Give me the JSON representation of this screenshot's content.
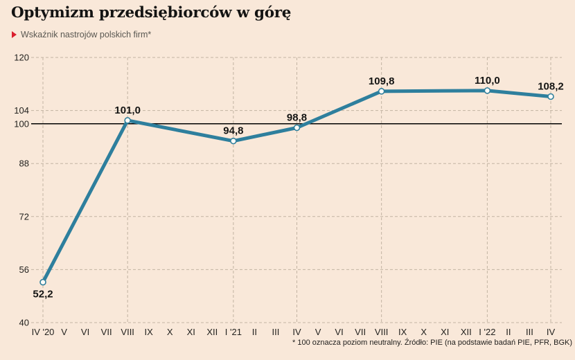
{
  "page": {
    "title": "Optymizm przedsiębiorców w górę",
    "subtitle": "Wskaźnik nastrojów polskich firm*",
    "footnote": "* 100 oznacza poziom neutralny. Źródło: PIE (na podstawie badań PIE, PFR, BGK)"
  },
  "colors": {
    "background": "#f9e8d9",
    "series_line": "#2e7f9d",
    "marker_fill": "#fffdf8",
    "grid_line": "#c2b3a2",
    "neutral_line": "#000000",
    "tick_text": "#23221f",
    "data_label_text": "#141413",
    "subtitle_bullet": "#da1f2e"
  },
  "chart_data": {
    "type": "line",
    "title": "Optymizm przedsiębiorców w górę",
    "subtitle": "Wskaźnik nastrojów polskich firm*",
    "xlabel": "",
    "ylabel": "",
    "ylim": [
      40,
      120
    ],
    "y_ticks": [
      40,
      56,
      72,
      88,
      100,
      104,
      120
    ],
    "neutral_level": 100,
    "grid": "dashed horizontal lines at y ticks; dashed vertical lines only at labeled data points; solid black line at neutral level 100",
    "legend": "none",
    "x_tick_labels": [
      "IV '20",
      "V",
      "VI",
      "VII",
      "VIII",
      "IX",
      "X",
      "XI",
      "XII",
      "I '21",
      "II",
      "III",
      "IV",
      "V",
      "VI",
      "VII",
      "VIII",
      "IX",
      "X",
      "XI",
      "XII",
      "I '22",
      "II",
      "III",
      "IV"
    ],
    "series": [
      {
        "name": "Wskaźnik nastrojów polskich firm",
        "points": [
          {
            "x_index": 0,
            "x_label": "IV '20",
            "value": 52.2,
            "label": "52,2",
            "label_pos": "below"
          },
          {
            "x_index": 4,
            "x_label": "VIII '20",
            "value": 101.0,
            "label": "101,0",
            "label_pos": "above"
          },
          {
            "x_index": 9,
            "x_label": "I '21",
            "value": 94.8,
            "label": "94,8",
            "label_pos": "above"
          },
          {
            "x_index": 12,
            "x_label": "IV '21",
            "value": 98.8,
            "label": "98,8",
            "label_pos": "above"
          },
          {
            "x_index": 16,
            "x_label": "VIII '21",
            "value": 109.8,
            "label": "109,8",
            "label_pos": "above"
          },
          {
            "x_index": 21,
            "x_label": "I '22",
            "value": 110.0,
            "label": "110,0",
            "label_pos": "above"
          },
          {
            "x_index": 24,
            "x_label": "IV '22",
            "value": 108.2,
            "label": "108,2",
            "label_pos": "above"
          }
        ]
      }
    ]
  }
}
